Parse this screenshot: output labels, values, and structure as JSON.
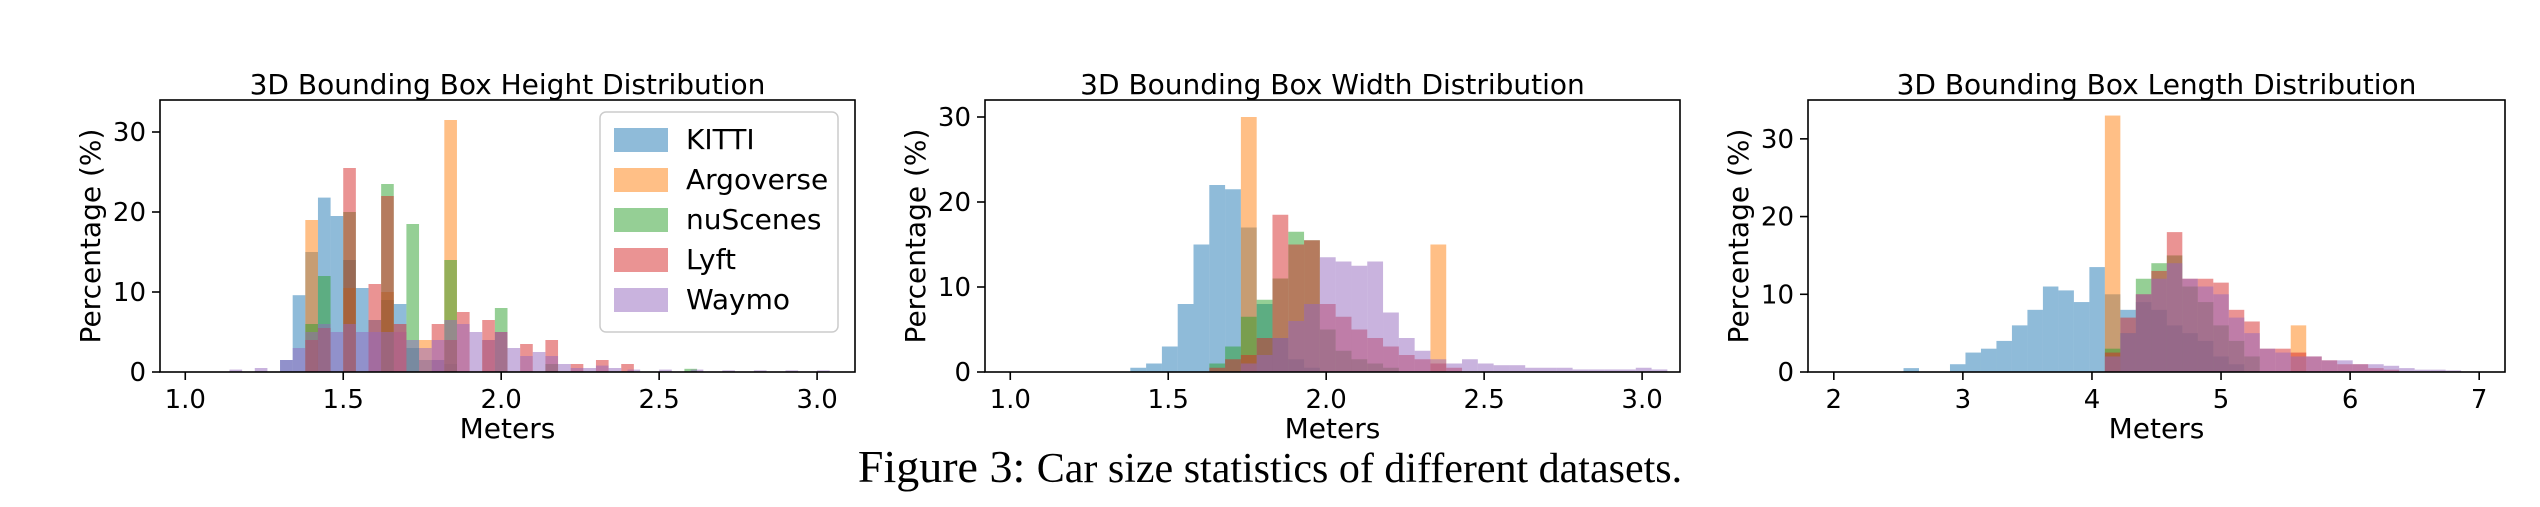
{
  "legend_entries": [
    "KITTI",
    "Argoverse",
    "nuScenes",
    "Lyft",
    "Waymo"
  ],
  "colors": {
    "KITTI": "#1f77b4",
    "Argoverse": "#ff7f0e",
    "nuScenes": "#2ca02c",
    "Lyft": "#d62728",
    "Waymo": "#9467bd"
  },
  "caption": {
    "label": "Figure 3:",
    "text": "Car size statistics of different datasets."
  },
  "chart_data": [
    {
      "type": "histogram",
      "title": "3D Bounding Box Height Distribution",
      "xlabel": "Meters",
      "ylabel": "Percentage (%)",
      "xlim": [
        0.92,
        3.12
      ],
      "ylim": [
        0,
        34
      ],
      "xticks": [
        "1.0",
        "1.5",
        "2.0",
        "2.5",
        "3.0"
      ],
      "yticks": [
        "0",
        "10",
        "20",
        "30"
      ],
      "bin_width": 0.04,
      "legend": "top-right",
      "series": [
        {
          "name": "KITTI",
          "bins": [
            [
              1.3,
              1.5
            ],
            [
              1.34,
              9.6
            ],
            [
              1.38,
              15
            ],
            [
              1.42,
              21.8
            ],
            [
              1.46,
              19.5
            ],
            [
              1.5,
              14
            ],
            [
              1.54,
              10.5
            ],
            [
              1.58,
              6.5
            ],
            [
              1.62,
              9
            ],
            [
              1.66,
              8.5
            ],
            [
              1.7,
              3
            ],
            [
              1.74,
              1.5
            ],
            [
              1.78,
              1.5
            ],
            [
              1.82,
              1
            ]
          ]
        },
        {
          "name": "Argoverse",
          "bins": [
            [
              1.38,
              19
            ],
            [
              1.5,
              10.5
            ],
            [
              1.62,
              10
            ],
            [
              1.66,
              5
            ],
            [
              1.74,
              4
            ],
            [
              1.82,
              31.5
            ],
            [
              1.94,
              4
            ]
          ]
        },
        {
          "name": "nuScenes",
          "bins": [
            [
              1.38,
              6
            ],
            [
              1.42,
              12
            ],
            [
              1.5,
              20
            ],
            [
              1.62,
              23.5
            ],
            [
              1.7,
              18.5
            ],
            [
              1.82,
              14
            ],
            [
              1.98,
              8
            ],
            [
              2.14,
              1
            ],
            [
              2.58,
              0.4
            ]
          ]
        },
        {
          "name": "Lyft",
          "bins": [
            [
              1.38,
              4
            ],
            [
              1.42,
              5.5
            ],
            [
              1.5,
              25.5
            ],
            [
              1.58,
              11
            ],
            [
              1.62,
              22
            ],
            [
              1.66,
              6
            ],
            [
              1.78,
              6
            ],
            [
              1.82,
              4
            ],
            [
              1.86,
              7.5
            ],
            [
              1.94,
              6.5
            ],
            [
              1.98,
              5
            ],
            [
              2.06,
              3.5
            ],
            [
              2.14,
              4
            ],
            [
              2.22,
              1
            ],
            [
              2.3,
              1.5
            ],
            [
              2.38,
              1
            ]
          ]
        },
        {
          "name": "Waymo",
          "bins": [
            [
              1.14,
              0.3
            ],
            [
              1.22,
              0.5
            ],
            [
              1.3,
              1.5
            ],
            [
              1.34,
              3
            ],
            [
              1.38,
              5
            ],
            [
              1.42,
              6
            ],
            [
              1.46,
              5
            ],
            [
              1.5,
              6
            ],
            [
              1.54,
              5
            ],
            [
              1.58,
              5
            ],
            [
              1.62,
              5
            ],
            [
              1.66,
              5
            ],
            [
              1.7,
              4
            ],
            [
              1.74,
              3
            ],
            [
              1.78,
              4
            ],
            [
              1.82,
              6.5
            ],
            [
              1.86,
              6
            ],
            [
              1.9,
              5
            ],
            [
              1.94,
              4
            ],
            [
              1.98,
              5
            ],
            [
              2.02,
              3
            ],
            [
              2.06,
              2
            ],
            [
              2.1,
              2.5
            ],
            [
              2.14,
              2
            ],
            [
              2.18,
              1
            ],
            [
              2.22,
              0.5
            ],
            [
              2.26,
              0.5
            ],
            [
              2.3,
              0.8
            ],
            [
              2.34,
              0.5
            ],
            [
              2.4,
              0.3
            ],
            [
              2.5,
              0.3
            ],
            [
              2.6,
              0.3
            ],
            [
              2.7,
              0.2
            ],
            [
              2.8,
              0.2
            ],
            [
              2.9,
              0.2
            ],
            [
              3.0,
              0.2
            ]
          ]
        }
      ]
    },
    {
      "type": "histogram",
      "title": "3D Bounding Box Width Distribution",
      "xlabel": "Meters",
      "ylabel": "Percentage (%)",
      "xlim": [
        0.92,
        3.12
      ],
      "ylim": [
        0,
        32
      ],
      "xticks": [
        "1.0",
        "1.5",
        "2.0",
        "2.5",
        "3.0"
      ],
      "yticks": [
        "0",
        "10",
        "20",
        "30"
      ],
      "bin_width": 0.05,
      "series": [
        {
          "name": "KITTI",
          "bins": [
            [
              1.38,
              0.5
            ],
            [
              1.43,
              1
            ],
            [
              1.48,
              3
            ],
            [
              1.53,
              8
            ],
            [
              1.58,
              15
            ],
            [
              1.63,
              22
            ],
            [
              1.68,
              21.5
            ],
            [
              1.73,
              17
            ],
            [
              1.78,
              8
            ],
            [
              1.83,
              4
            ],
            [
              1.88,
              1.5
            ],
            [
              1.93,
              0.5
            ]
          ]
        },
        {
          "name": "Argoverse",
          "bins": [
            [
              1.73,
              30
            ],
            [
              2.33,
              15
            ]
          ]
        },
        {
          "name": "nuScenes",
          "bins": [
            [
              1.63,
              1
            ],
            [
              1.68,
              3
            ],
            [
              1.73,
              6.5
            ],
            [
              1.78,
              8.5
            ],
            [
              1.83,
              11
            ],
            [
              1.88,
              16.5
            ],
            [
              1.93,
              15.5
            ],
            [
              1.98,
              5
            ],
            [
              2.03,
              2.5
            ],
            [
              2.08,
              1.5
            ],
            [
              2.13,
              1
            ],
            [
              2.18,
              0.5
            ]
          ]
        },
        {
          "name": "Lyft",
          "bins": [
            [
              1.63,
              0.5
            ],
            [
              1.68,
              1.5
            ],
            [
              1.73,
              2
            ],
            [
              1.78,
              4
            ],
            [
              1.83,
              18.5
            ],
            [
              1.88,
              15
            ],
            [
              1.93,
              15.5
            ],
            [
              1.98,
              8
            ],
            [
              2.03,
              6.5
            ],
            [
              2.08,
              5
            ],
            [
              2.13,
              4
            ],
            [
              2.18,
              3
            ],
            [
              2.23,
              2
            ],
            [
              2.28,
              1.5
            ],
            [
              2.33,
              1
            ],
            [
              2.38,
              0.5
            ]
          ]
        },
        {
          "name": "Waymo",
          "bins": [
            [
              1.73,
              1
            ],
            [
              1.78,
              2
            ],
            [
              1.83,
              4
            ],
            [
              1.88,
              6
            ],
            [
              1.93,
              8
            ],
            [
              1.98,
              13.5
            ],
            [
              2.03,
              13
            ],
            [
              2.08,
              12.5
            ],
            [
              2.13,
              13
            ],
            [
              2.18,
              7
            ],
            [
              2.23,
              4
            ],
            [
              2.28,
              2.5
            ],
            [
              2.33,
              1.5
            ],
            [
              2.38,
              1
            ],
            [
              2.43,
              1.5
            ],
            [
              2.48,
              1
            ],
            [
              2.53,
              0.8
            ],
            [
              2.58,
              0.8
            ],
            [
              2.63,
              0.5
            ],
            [
              2.68,
              0.5
            ],
            [
              2.73,
              0.5
            ],
            [
              2.78,
              0.3
            ],
            [
              2.83,
              0.3
            ],
            [
              2.88,
              0.3
            ],
            [
              2.93,
              0.3
            ],
            [
              2.98,
              0.5
            ],
            [
              3.03,
              0.3
            ]
          ]
        }
      ]
    },
    {
      "type": "histogram",
      "title": "3D Bounding Box Length Distribution",
      "xlabel": "Meters",
      "ylabel": "Percentage (%)",
      "xlim": [
        1.8,
        7.2
      ],
      "ylim": [
        0,
        35
      ],
      "xticks": [
        "2",
        "3",
        "4",
        "5",
        "6",
        "7"
      ],
      "yticks": [
        "0",
        "10",
        "20",
        "30"
      ],
      "bin_width": 0.12,
      "series": [
        {
          "name": "KITTI",
          "bins": [
            [
              2.54,
              0.5
            ],
            [
              2.9,
              1
            ],
            [
              3.02,
              2.5
            ],
            [
              3.14,
              3
            ],
            [
              3.26,
              4
            ],
            [
              3.38,
              6
            ],
            [
              3.5,
              8
            ],
            [
              3.62,
              11
            ],
            [
              3.74,
              10.5
            ],
            [
              3.86,
              9
            ],
            [
              3.98,
              13.5
            ],
            [
              4.1,
              10
            ],
            [
              4.22,
              8
            ],
            [
              4.34,
              9
            ],
            [
              4.46,
              8
            ],
            [
              4.58,
              6
            ],
            [
              4.7,
              5
            ],
            [
              4.82,
              4
            ],
            [
              4.94,
              2
            ],
            [
              5.06,
              1
            ]
          ]
        },
        {
          "name": "Argoverse",
          "bins": [
            [
              4.1,
              33
            ],
            [
              5.54,
              6
            ]
          ]
        },
        {
          "name": "nuScenes",
          "bins": [
            [
              4.1,
              3
            ],
            [
              4.22,
              5
            ],
            [
              4.34,
              12
            ],
            [
              4.46,
              14
            ],
            [
              4.58,
              15
            ],
            [
              4.7,
              11
            ],
            [
              4.82,
              9
            ],
            [
              4.94,
              6
            ],
            [
              5.06,
              4
            ],
            [
              5.18,
              2
            ]
          ]
        },
        {
          "name": "Lyft",
          "bins": [
            [
              4.1,
              2.5
            ],
            [
              4.22,
              7
            ],
            [
              4.34,
              10
            ],
            [
              4.46,
              13
            ],
            [
              4.58,
              18
            ],
            [
              4.7,
              12
            ],
            [
              4.82,
              12
            ],
            [
              4.94,
              11.5
            ],
            [
              5.06,
              8
            ],
            [
              5.18,
              6.5
            ],
            [
              5.3,
              3
            ],
            [
              5.42,
              3
            ],
            [
              5.54,
              2.5
            ],
            [
              5.66,
              2
            ],
            [
              5.78,
              1.5
            ],
            [
              5.9,
              1
            ],
            [
              6.02,
              1
            ],
            [
              6.14,
              0.5
            ],
            [
              6.26,
              0.3
            ]
          ]
        },
        {
          "name": "Waymo",
          "bins": [
            [
              4.1,
              2
            ],
            [
              4.22,
              5
            ],
            [
              4.34,
              10
            ],
            [
              4.46,
              12
            ],
            [
              4.58,
              14
            ],
            [
              4.7,
              12
            ],
            [
              4.82,
              11
            ],
            [
              4.94,
              10
            ],
            [
              5.06,
              7
            ],
            [
              5.18,
              5
            ],
            [
              5.3,
              3
            ],
            [
              5.42,
              2.5
            ],
            [
              5.54,
              2
            ],
            [
              5.66,
              2
            ],
            [
              5.78,
              1.5
            ],
            [
              5.9,
              1.5
            ],
            [
              6.02,
              1
            ],
            [
              6.14,
              1
            ],
            [
              6.26,
              0.8
            ],
            [
              6.38,
              0.5
            ],
            [
              6.5,
              0.3
            ],
            [
              6.62,
              0.3
            ],
            [
              6.74,
              0.2
            ]
          ]
        }
      ]
    }
  ]
}
